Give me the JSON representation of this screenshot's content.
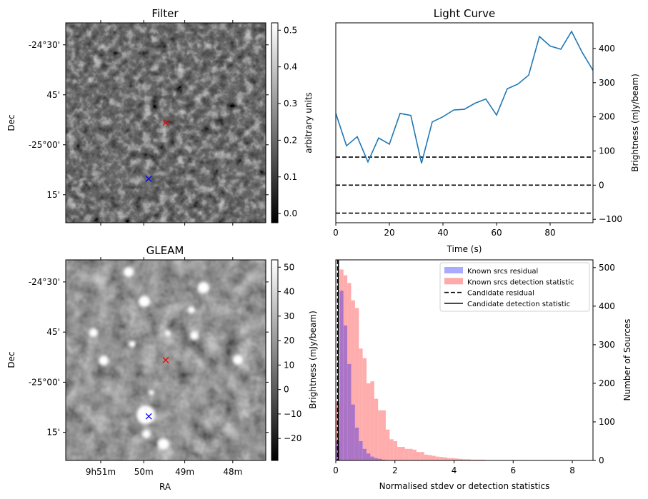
{
  "chart_data": [
    {
      "id": "filter",
      "type": "heatmap",
      "title": "Filter",
      "xlabel": "",
      "ylabel": "Dec",
      "dec_ticks": [
        "-24°30'",
        "45'",
        "-25°00'",
        "15'"
      ],
      "colorbar": {
        "label": "arbitrary units",
        "range": [
          -0.025,
          0.52
        ],
        "ticks": [
          "0.0",
          "0.1",
          "0.2",
          "0.3",
          "0.4",
          "0.5"
        ],
        "tick_values": [
          0.0,
          0.1,
          0.2,
          0.3,
          0.4,
          0.5
        ],
        "colormap": "gray"
      },
      "markers": [
        {
          "color": "#ff0000",
          "symbol": "x",
          "fx": 0.5,
          "fy": 0.5
        },
        {
          "color": "#0000ff",
          "symbol": "x",
          "fx": 0.415,
          "fy": 0.78
        }
      ]
    },
    {
      "id": "light_curve",
      "type": "line",
      "title": "Light Curve",
      "xlabel": "Time (s)",
      "ylabel": "Brightness (mJy/beam)",
      "xlim": [
        0,
        96
      ],
      "ylim": [
        -110,
        475
      ],
      "xticks": [
        "0",
        "20",
        "40",
        "60",
        "80"
      ],
      "xtick_values": [
        0,
        20,
        40,
        60,
        80
      ],
      "yticks": [
        "−100",
        "0",
        "100",
        "200",
        "300",
        "400"
      ],
      "ytick_values": [
        -100,
        0,
        100,
        200,
        300,
        400
      ],
      "series": [
        {
          "color": "#1f77b4",
          "x": [
            0,
            4,
            8,
            12,
            16,
            20,
            24,
            28,
            32,
            36,
            40,
            44,
            48,
            52,
            56,
            60,
            64,
            68,
            72,
            76,
            80,
            84,
            88,
            92,
            96
          ],
          "y": [
            210,
            115,
            142,
            68,
            138,
            120,
            210,
            204,
            64,
            185,
            200,
            220,
            222,
            240,
            252,
            205,
            282,
            296,
            322,
            435,
            407,
            398,
            450,
            388,
            336
          ]
        }
      ],
      "hlines": [
        {
          "y": 82,
          "style": "dashed",
          "color": "#000000"
        },
        {
          "y": 0,
          "style": "dashed",
          "color": "#000000"
        },
        {
          "y": -82,
          "style": "dashed",
          "color": "#000000"
        }
      ]
    },
    {
      "id": "gleam",
      "type": "heatmap",
      "title": "GLEAM",
      "xlabel": "RA",
      "ylabel": "Dec",
      "dec_ticks": [
        "-24°30'",
        "45'",
        "-25°00'",
        "15'"
      ],
      "ra_ticks": [
        "9h51m",
        "50m",
        "49m",
        "48m"
      ],
      "colorbar": {
        "label": "Brightness (mJy/beam)",
        "range": [
          -29,
          53
        ],
        "ticks": [
          "−20",
          "−10",
          "0",
          "10",
          "20",
          "30",
          "40",
          "50"
        ],
        "tick_values": [
          -20,
          -10,
          0,
          10,
          20,
          30,
          40,
          50
        ],
        "colormap": "gray"
      },
      "markers": [
        {
          "color": "#ff0000",
          "symbol": "x",
          "fx": 0.5,
          "fy": 0.5
        },
        {
          "color": "#0000ff",
          "symbol": "x",
          "fx": 0.415,
          "fy": 0.78
        }
      ]
    },
    {
      "id": "histogram",
      "type": "bar",
      "title": "",
      "xlabel": "Normalised stdev or detection statistics",
      "ylabel": "Number of Sources",
      "xlim": [
        0,
        8.7
      ],
      "ylim": [
        0,
        520
      ],
      "xticks": [
        "0",
        "2",
        "4",
        "6",
        "8"
      ],
      "xtick_values": [
        0,
        2,
        4,
        6,
        8
      ],
      "yticks": [
        "0",
        "100",
        "200",
        "300",
        "400",
        "500"
      ],
      "ytick_values": [
        0,
        100,
        200,
        300,
        400,
        500
      ],
      "bin_width": 0.13,
      "legend": {
        "position": "top-right",
        "entries": [
          {
            "label": "Known srcs residual",
            "kind": "patch",
            "color": "#aaaaff"
          },
          {
            "label": "Known srcs detection statistic",
            "kind": "patch",
            "color": "#ffaaaa"
          },
          {
            "label": "Candidate residual",
            "kind": "dashed",
            "color": "#000000"
          },
          {
            "label": "Candidate detection statistic",
            "kind": "solid",
            "color": "#000000"
          }
        ]
      },
      "series": [
        {
          "name": "Known srcs residual",
          "color": "#aaaaff",
          "bin_start": [
            0,
            0.13,
            0.26,
            0.39,
            0.52,
            0.65,
            0.78,
            0.91,
            1.04,
            1.17,
            1.3,
            1.43,
            1.56,
            1.69
          ],
          "values": [
            50,
            440,
            350,
            250,
            145,
            85,
            50,
            30,
            18,
            10,
            6,
            4,
            2,
            1
          ]
        },
        {
          "name": "Known srcs detection statistic",
          "color": "#ffaaaa",
          "bin_start": [
            0.0,
            0.13,
            0.26,
            0.39,
            0.52,
            0.65,
            0.78,
            0.91,
            1.04,
            1.17,
            1.3,
            1.43,
            1.56,
            1.69,
            1.82,
            1.95,
            2.08,
            2.21,
            2.34,
            2.47,
            2.6,
            2.73,
            2.86,
            2.99,
            3.12,
            3.25,
            3.38,
            3.51,
            3.64,
            3.77,
            3.9,
            4.03,
            4.16,
            4.29,
            4.42,
            4.55,
            4.68,
            4.81,
            4.94,
            5.07,
            5.2,
            5.33,
            5.46,
            5.59,
            5.72,
            5.85,
            5.98,
            6.11,
            6.24,
            6.37,
            6.5,
            6.63,
            6.76,
            6.89,
            7.02,
            7.15,
            7.28,
            7.41,
            7.54,
            7.67,
            7.8,
            7.93,
            8.06,
            8.19
          ],
          "values": [
            150,
            495,
            480,
            460,
            415,
            395,
            290,
            265,
            200,
            205,
            160,
            130,
            130,
            80,
            55,
            50,
            35,
            35,
            30,
            30,
            28,
            22,
            22,
            15,
            14,
            12,
            10,
            9,
            8,
            6,
            6,
            5,
            4,
            3,
            3,
            2,
            2,
            2,
            2,
            1,
            1,
            1,
            1,
            1,
            1,
            1,
            1,
            1,
            1,
            1,
            0,
            0,
            0,
            1,
            1,
            1,
            0,
            0,
            1,
            1,
            1,
            0,
            0,
            1
          ]
        }
      ],
      "vlines": [
        {
          "name": "Candidate residual",
          "x": 0.06,
          "style": "dashed"
        },
        {
          "name": "Candidate detection statistic",
          "x": 0.09,
          "style": "solid"
        }
      ]
    }
  ]
}
